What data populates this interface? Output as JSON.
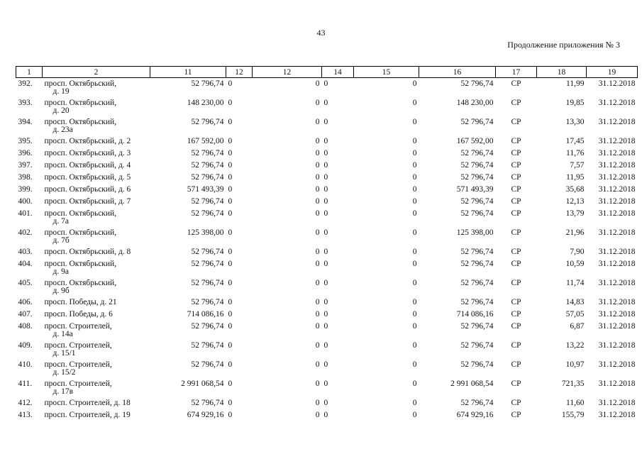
{
  "page_number": "43",
  "continuation": "Продолжение приложения № 3",
  "columns": [
    "1",
    "2",
    "11",
    "12",
    "12",
    "14",
    "15",
    "16",
    "17",
    "18",
    "19"
  ],
  "rows": [
    {
      "n": "392.",
      "addr1": "просп. Октябрьский,",
      "addr2": "д. 19",
      "c11": "52 796,74",
      "c12a": "0",
      "c12b": "0",
      "c14": "0",
      "c15": "0",
      "c16": "52 796,74",
      "c17": "СР",
      "c18": "11,99",
      "c19": "31.12.2018"
    },
    {
      "n": "393.",
      "addr1": "просп. Октябрьский,",
      "addr2": "д. 20",
      "c11": "148 230,00",
      "c12a": "0",
      "c12b": "0",
      "c14": "0",
      "c15": "0",
      "c16": "148 230,00",
      "c17": "СР",
      "c18": "19,85",
      "c19": "31.12.2018"
    },
    {
      "n": "394.",
      "addr1": "просп. Октябрьский,",
      "addr2": "д. 23а",
      "c11": "52 796,74",
      "c12a": "0",
      "c12b": "0",
      "c14": "0",
      "c15": "0",
      "c16": "52 796,74",
      "c17": "СР",
      "c18": "13,30",
      "c19": "31.12.2018"
    },
    {
      "n": "395.",
      "addr1": "просп. Октябрьский, д. 2",
      "addr2": "",
      "c11": "167 592,00",
      "c12a": "0",
      "c12b": "0",
      "c14": "0",
      "c15": "0",
      "c16": "167 592,00",
      "c17": "СР",
      "c18": "17,45",
      "c19": "31.12.2018"
    },
    {
      "n": "396.",
      "addr1": "просп. Октябрьский, д. 3",
      "addr2": "",
      "c11": "52 796,74",
      "c12a": "0",
      "c12b": "0",
      "c14": "0",
      "c15": "0",
      "c16": "52 796,74",
      "c17": "СР",
      "c18": "11,76",
      "c19": "31.12.2018"
    },
    {
      "n": "397.",
      "addr1": "просп. Октябрьский, д. 4",
      "addr2": "",
      "c11": "52 796,74",
      "c12a": "0",
      "c12b": "0",
      "c14": "0",
      "c15": "0",
      "c16": "52 796,74",
      "c17": "СР",
      "c18": "7,57",
      "c19": "31.12.2018"
    },
    {
      "n": "398.",
      "addr1": "просп. Октябрьский, д. 5",
      "addr2": "",
      "c11": "52 796,74",
      "c12a": "0",
      "c12b": "0",
      "c14": "0",
      "c15": "0",
      "c16": "52 796,74",
      "c17": "СР",
      "c18": "11,95",
      "c19": "31.12.2018"
    },
    {
      "n": "399.",
      "addr1": "просп. Октябрьский, д. 6",
      "addr2": "",
      "c11": "571 493,39",
      "c12a": "0",
      "c12b": "0",
      "c14": "0",
      "c15": "0",
      "c16": "571 493,39",
      "c17": "СР",
      "c18": "35,68",
      "c19": "31.12.2018"
    },
    {
      "n": "400.",
      "addr1": "просп. Октябрьский, д. 7",
      "addr2": "",
      "c11": "52 796,74",
      "c12a": "0",
      "c12b": "0",
      "c14": "0",
      "c15": "0",
      "c16": "52 796,74",
      "c17": "СР",
      "c18": "12,13",
      "c19": "31.12.2018"
    },
    {
      "n": "401.",
      "addr1": "просп. Октябрьский,",
      "addr2": "д. 7а",
      "c11": "52 796,74",
      "c12a": "0",
      "c12b": "0",
      "c14": "0",
      "c15": "0",
      "c16": "52 796,74",
      "c17": "СР",
      "c18": "13,79",
      "c19": "31.12.2018"
    },
    {
      "n": "402.",
      "addr1": "просп. Октябрьский,",
      "addr2": "д. 7б",
      "c11": "125 398,00",
      "c12a": "0",
      "c12b": "0",
      "c14": "0",
      "c15": "0",
      "c16": "125 398,00",
      "c17": "СР",
      "c18": "21,96",
      "c19": "31.12.2018"
    },
    {
      "n": "403.",
      "addr1": "просп. Октябрьский, д. 8",
      "addr2": "",
      "c11": "52 796,74",
      "c12a": "0",
      "c12b": "0",
      "c14": "0",
      "c15": "0",
      "c16": "52 796,74",
      "c17": "СР",
      "c18": "7,90",
      "c19": "31.12.2018"
    },
    {
      "n": "404.",
      "addr1": "просп. Октябрьский,",
      "addr2": "д. 9а",
      "c11": "52 796,74",
      "c12a": "0",
      "c12b": "0",
      "c14": "0",
      "c15": "0",
      "c16": "52 796,74",
      "c17": "СР",
      "c18": "10,59",
      "c19": "31.12.2018"
    },
    {
      "n": "405.",
      "addr1": "просп. Октябрьский,",
      "addr2": "д. 9б",
      "c11": "52 796,74",
      "c12a": "0",
      "c12b": "0",
      "c14": "0",
      "c15": "0",
      "c16": "52 796,74",
      "c17": "СР",
      "c18": "11,74",
      "c19": "31.12.2018"
    },
    {
      "n": "406.",
      "addr1": "просп. Победы, д. 21",
      "addr2": "",
      "c11": "52 796,74",
      "c12a": "0",
      "c12b": "0",
      "c14": "0",
      "c15": "0",
      "c16": "52 796,74",
      "c17": "СР",
      "c18": "14,83",
      "c19": "31.12.2018"
    },
    {
      "n": "407.",
      "addr1": "просп. Победы, д. 6",
      "addr2": "",
      "c11": "714 086,16",
      "c12a": "0",
      "c12b": "0",
      "c14": "0",
      "c15": "0",
      "c16": "714 086,16",
      "c17": "СР",
      "c18": "57,05",
      "c19": "31.12.2018"
    },
    {
      "n": "408.",
      "addr1": "просп. Строителей,",
      "addr2": "д. 14а",
      "c11": "52 796,74",
      "c12a": "0",
      "c12b": "0",
      "c14": "0",
      "c15": "0",
      "c16": "52 796,74",
      "c17": "СР",
      "c18": "6,87",
      "c19": "31.12.2018"
    },
    {
      "n": "409.",
      "addr1": "просп. Строителей,",
      "addr2": "д. 15/1",
      "c11": "52 796,74",
      "c12a": "0",
      "c12b": "0",
      "c14": "0",
      "c15": "0",
      "c16": "52 796,74",
      "c17": "СР",
      "c18": "13,22",
      "c19": "31.12.2018"
    },
    {
      "n": "410.",
      "addr1": "просп. Строителей,",
      "addr2": "д. 15/2",
      "c11": "52 796,74",
      "c12a": "0",
      "c12b": "0",
      "c14": "0",
      "c15": "0",
      "c16": "52 796,74",
      "c17": "СР",
      "c18": "10,97",
      "c19": "31.12.2018"
    },
    {
      "n": "411.",
      "addr1": "просп. Строителей,",
      "addr2": "д. 17в",
      "c11": "2 991 068,54",
      "c12a": "0",
      "c12b": "0",
      "c14": "0",
      "c15": "0",
      "c16": "2 991 068,54",
      "c17": "СР",
      "c18": "721,35",
      "c19": "31.12.2018"
    },
    {
      "n": "412.",
      "addr1": "просп. Строителей, д. 18",
      "addr2": "",
      "c11": "52 796,74",
      "c12a": "0",
      "c12b": "0",
      "c14": "0",
      "c15": "0",
      "c16": "52 796,74",
      "c17": "СР",
      "c18": "11,60",
      "c19": "31.12.2018"
    },
    {
      "n": "413.",
      "addr1": "просп. Строителей, д. 19",
      "addr2": "",
      "c11": "674 929,16",
      "c12a": "0",
      "c12b": "0",
      "c14": "0",
      "c15": "0",
      "c16": "674 929,16",
      "c17": "СР",
      "c18": "155,79",
      "c19": "31.12.2018"
    }
  ]
}
